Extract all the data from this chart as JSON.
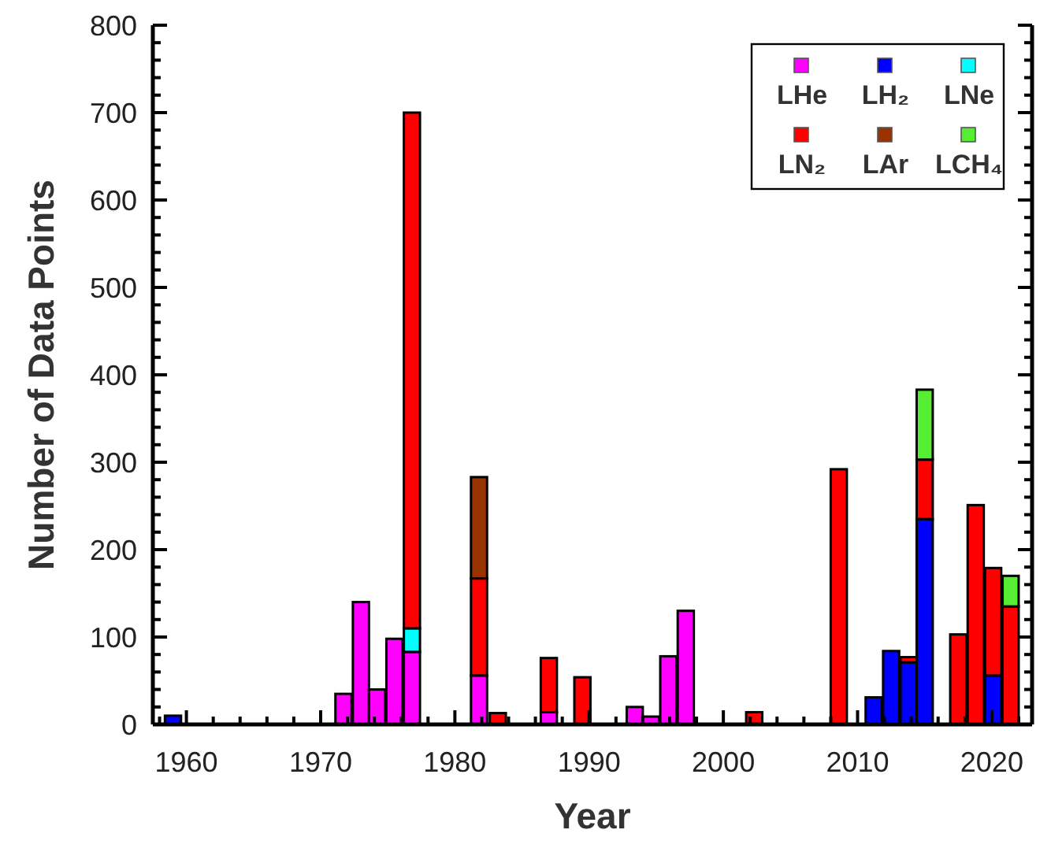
{
  "chart_data": {
    "type": "bar",
    "stacked": true,
    "xlabel": "Year",
    "ylabel": "Number of Data Points",
    "x": [
      1959.0,
      1971.7,
      1973.0,
      1974.2,
      1975.5,
      1976.8,
      1981.8,
      1983.2,
      1987.0,
      1989.5,
      1993.4,
      1994.6,
      1995.9,
      1997.2,
      2002.3,
      2008.6,
      2011.2,
      2012.5,
      2013.8,
      2015.0,
      2017.5,
      2018.8,
      2020.1,
      2021.4
    ],
    "series": [
      {
        "name": "LHe",
        "color": "#ff00ff",
        "values": [
          null,
          35,
          140,
          40,
          98,
          83,
          56,
          null,
          14,
          null,
          20,
          9,
          78,
          130,
          null,
          null,
          null,
          null,
          null,
          null,
          null,
          null,
          null,
          null
        ]
      },
      {
        "name": "LH₂",
        "color": "#0000ff",
        "values": [
          10,
          null,
          null,
          null,
          null,
          null,
          null,
          null,
          null,
          null,
          null,
          null,
          null,
          null,
          null,
          null,
          31,
          84,
          71,
          235,
          null,
          null,
          56,
          null
        ]
      },
      {
        "name": "LNe",
        "color": "#00ffff",
        "values": [
          null,
          null,
          null,
          null,
          null,
          27,
          null,
          null,
          null,
          null,
          null,
          null,
          null,
          null,
          null,
          null,
          null,
          null,
          null,
          null,
          null,
          null,
          null,
          null
        ]
      },
      {
        "name": "LN₂",
        "color": "#ff0000",
        "values": [
          null,
          null,
          null,
          null,
          null,
          590,
          111,
          13,
          62,
          54,
          null,
          null,
          null,
          null,
          14,
          292,
          null,
          null,
          6,
          68,
          103,
          251,
          123,
          135
        ]
      },
      {
        "name": "LAr",
        "color": "#993300",
        "values": [
          null,
          null,
          null,
          null,
          null,
          null,
          116,
          null,
          null,
          null,
          null,
          null,
          null,
          null,
          null,
          null,
          null,
          null,
          null,
          null,
          null,
          null,
          null,
          null
        ]
      },
      {
        "name": "LCH₄",
        "color": "#55ee33",
        "values": [
          null,
          null,
          null,
          null,
          null,
          null,
          null,
          null,
          null,
          null,
          null,
          null,
          null,
          null,
          null,
          null,
          null,
          null,
          null,
          80,
          null,
          null,
          null,
          35
        ]
      }
    ],
    "xlim": [
      1957.5,
      2023
    ],
    "xticks": [
      {
        "value": 1958,
        "label": null
      },
      1960,
      {
        "value": 1962,
        "label": null
      },
      {
        "value": 1964,
        "label": null
      },
      {
        "value": 1966,
        "label": null
      },
      {
        "value": 1968,
        "label": null
      },
      1970,
      {
        "value": 1972,
        "label": null
      },
      {
        "value": 1974,
        "label": null
      },
      {
        "value": 1976,
        "label": null
      },
      {
        "value": 1978,
        "label": null
      },
      1980,
      {
        "value": 1982,
        "label": null
      },
      {
        "value": 1984,
        "label": null
      },
      {
        "value": 1986,
        "label": null
      },
      {
        "value": 1988,
        "label": null
      },
      1990,
      {
        "value": 1992,
        "label": null
      },
      {
        "value": 1994,
        "label": null
      },
      {
        "value": 1996,
        "label": null
      },
      {
        "value": 1998,
        "label": null
      },
      2000,
      {
        "value": 2002,
        "label": null
      },
      {
        "value": 2004,
        "label": null
      },
      {
        "value": 2006,
        "label": null
      },
      {
        "value": 2008,
        "label": null
      },
      2010,
      {
        "value": 2012,
        "label": null
      },
      {
        "value": 2014,
        "label": null
      },
      {
        "value": 2016,
        "label": null
      },
      {
        "value": 2018,
        "label": null
      },
      2020,
      {
        "value": 2022,
        "label": null
      }
    ],
    "ylim": [
      0,
      800
    ],
    "yticks": [
      0,
      {
        "value": 20,
        "label": null
      },
      {
        "value": 40,
        "label": null
      },
      {
        "value": 60,
        "label": null
      },
      {
        "value": 80,
        "label": null
      },
      100,
      {
        "value": 120,
        "label": null
      },
      {
        "value": 140,
        "label": null
      },
      {
        "value": 160,
        "label": null
      },
      {
        "value": 180,
        "label": null
      },
      200,
      {
        "value": 220,
        "label": null
      },
      {
        "value": 240,
        "label": null
      },
      {
        "value": 260,
        "label": null
      },
      {
        "value": 280,
        "label": null
      },
      300,
      {
        "value": 320,
        "label": null
      },
      {
        "value": 340,
        "label": null
      },
      {
        "value": 360,
        "label": null
      },
      {
        "value": 380,
        "label": null
      },
      400,
      {
        "value": 420,
        "label": null
      },
      {
        "value": 440,
        "label": null
      },
      {
        "value": 460,
        "label": null
      },
      {
        "value": 480,
        "label": null
      },
      500,
      {
        "value": 520,
        "label": null
      },
      {
        "value": 540,
        "label": null
      },
      {
        "value": 560,
        "label": null
      },
      {
        "value": 580,
        "label": null
      },
      600,
      {
        "value": 620,
        "label": null
      },
      {
        "value": 640,
        "label": null
      },
      {
        "value": 660,
        "label": null
      },
      {
        "value": 680,
        "label": null
      },
      700,
      {
        "value": 720,
        "label": null
      },
      {
        "value": 740,
        "label": null
      },
      {
        "value": 760,
        "label": null
      },
      {
        "value": 780,
        "label": null
      },
      800
    ],
    "grid": false,
    "legend": "top right"
  }
}
